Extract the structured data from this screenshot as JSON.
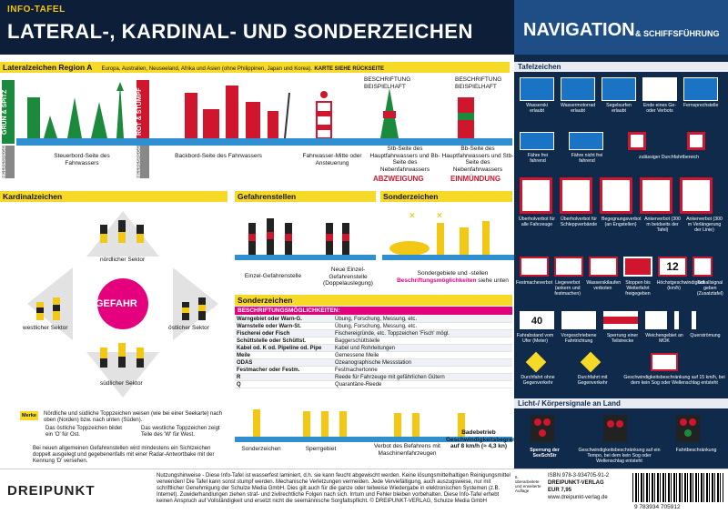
{
  "header": {
    "subtitle": "INFO-TAFEL",
    "title": "LATERAL-, KARDINAL- UND SONDERZEICHEN",
    "nav_title": "NAVIGATION",
    "nav_sub": "& SCHIFFSFÜHRUNG"
  },
  "lateral": {
    "heading": "Lateralzeichen Region A",
    "regions": "Europa, Australien, Neuseeland, Afrika und Asien (ohne Philippinen, Japan und Korea).",
    "see_back": "KARTE SIEHE RÜCKSEITE",
    "green_label": "GRÜN & SPITZ",
    "red_label": "ROT & STUMPF",
    "meeresregel": "MEERESREGEL",
    "captions": [
      "Steuerbord-Seite des Fahrwassers",
      "Backbord-Seite des Fahrwassers",
      "Fahrwasser-Mitte oder Ansteuerung",
      "Stb-Seite des Hauptfahrwassers und Bb-Seite des Nebenfahrwassers",
      "Bb-Seite des Hauptfahrwassers und Stb-Seite des Nebenfahrwassers"
    ],
    "abzweigung": "ABZWEIGUNG",
    "einmuendung": "EINMÜNDUNG",
    "beschriftung": "BESCHRIFTUNG BEISPIELHAFT"
  },
  "kardinal": {
    "heading": "Kardinalzeichen",
    "gefahr": "GEFAHR",
    "north": "nördlicher Sektor",
    "west": "westlicher Sektor",
    "east": "östlicher Sektor",
    "south": "südlicher Sektor",
    "merke": "Merke",
    "note1": "Nördliche und südliche Toppzeichen weisen (wie bei einer Seekarte) nach oben (Norden) bzw. nach unten (Süden).",
    "note2": "Das östliche Toppzeichen bildet ein 'O' für Ost.",
    "note3": "Das westliche Toppzeichen zeigt Teile des 'W' für West.",
    "note4": "Bei neuen allgemeinen Gefahrenstellen wird mindestens ein Sichtzeichen doppelt ausgelegt und gegebenenfalls mit einer Radar-Antwortbake mit der Kennung 'D' versehen."
  },
  "gefahren": {
    "heading": "Gefahrenstellen",
    "einzel": "Einzel-Gefahrenstelle",
    "neue": "Neue Einzel-Gefahrenstelle (Doppelauslegung)"
  },
  "sonder": {
    "heading": "Sonderzeichen",
    "caption1": "Sondergebiete und -stellen",
    "caption2": "Beschriftungsmöglichkeiten",
    "caption3": "siehe unten"
  },
  "sonder_table": {
    "heading": "Sonderzeichen",
    "subheading": "BESCHRIFTUNGSMÖGLICHKEITEN:",
    "rows": [
      {
        "k": "Warngebiet oder Warn-G.",
        "v": "Übung, Forschung, Messung, etc."
      },
      {
        "k": "Warnstelle oder Warn-St.",
        "v": "Übung, Forschung, Messung, etc."
      },
      {
        "k": "Fischerei oder Fisch",
        "v": "Fischereigründe, etc.      Toppzeichen 'Fisch' mögl."
      },
      {
        "k": "Schüttstelle oder Schüttst.",
        "v": "Baggerschüttstelle"
      },
      {
        "k": "Kabel od. K od. Pipeline od. Pipe",
        "v": "Kabel und Rohrleitungen"
      },
      {
        "k": "Meile",
        "v": "Gemessene Meile"
      },
      {
        "k": "ODAS",
        "v": "Ozeanographische Messstation"
      },
      {
        "k": "Festmacher oder Festm.",
        "v": "Festmachertonne"
      },
      {
        "k": "R",
        "v": "Reede für Fahrzeuge mit gefährlichen Gütern"
      },
      {
        "k": "Q",
        "v": "Quarantäne-Reede"
      }
    ]
  },
  "bottom_captions": {
    "a": "Sonderzeichen",
    "b": "Sperrgebiet",
    "c": "Verbot des Befahrens mit Maschinenfahrzeugen",
    "d": "Badebetrieb Geschwindigkeitsbegrenzung auf 8 km/h (≈ 4,3 kn)"
  },
  "right": {
    "tafel_heading": "Tafelzeichen",
    "signs_row1": [
      "Wasserski erlaubt",
      "Wassermotorrad erlaubt",
      "Segelsurfen erlaubt",
      "Ende eines Ge- oder Verbots",
      "Fernsprechstelle"
    ],
    "signs_row2": [
      "Fähre frei fahrend",
      "Fähre nicht frei fahrend",
      "zulässiger Durchfahrtbereich"
    ],
    "signs_row3": [
      "Überholverbot für alle Fahrzeuge",
      "Überholverbot für Schleppverbände",
      "Begegnungsverbot (an Engstellen)",
      "Ankerverbot (300 m beidseits der Tafel)",
      "Ankerverbot (300 m Verlängerung der Linie)"
    ],
    "signs_row4": [
      "Festmacheverbot",
      "Liegeverbot (ankern und festmachen)",
      "Wasserskilaufen verboten",
      "Stoppen bis Weiterfahrt freigegeben",
      "Höchstgeschwindigkeit (km/h)",
      "Schallsignal geben (Zusatztafel)"
    ],
    "speed_value": "12",
    "signs_row5": [
      "Fahrabstand vom Ufer (Meter)",
      "Vorgeschriebene Fahrtrichtung",
      "Sperrung einer Teilstrecke",
      "Weichengebiet an MOK",
      "Querströmung"
    ],
    "distance_value": "40",
    "signs_row6": [
      "Durchfahrt ohne Gegenverkehr",
      "Durchfahrt mit Gegenverkehr",
      "Geschwindigkeitsbeschränkung auf 15 km/h, bei dem kein Sog oder Wellenschlag entsteht"
    ],
    "licht_heading": "Licht-/ Körpersignale an Land",
    "licht": [
      "Sperrung der SeeSchStr",
      "Geschwindigkeitsbeschränkung auf ein Tempo, bei dem kein Sog oder Wellenschlag entsteht",
      "Fahrtbeschränkung"
    ]
  },
  "footer": {
    "logo": "DREIPUNKT",
    "notice": "Nutzungshinweise - Diese Info-Tafel ist wasserfest laminiert, d.h. sie kann feucht abgewischt werden. Keine lösungsmittelhaltigen Reinigungsmittel verwenden! Die Tafel kann sonst stumpf werden. Mechanische Verletzungen vermeiden. Jede Verviefältigung, auch auszugsweise, nur mit schriftlicher Genehmigung der Schulze Media GmbH. Dies gilt auch für die ganze oder teilweise Wiedergabe in elektronischen Systemen (z.B. Internet). Zuwiderhandlungen ziehen straf- und zivilrechtliche Folgen nach sich. Irrtum und Fehler bleiben vorbehalten. Diese Info-Tafel erhebt keinen Anspruch auf Vollständigkeit und ersetzt nicht die seemännische Sorgfaltspflicht. © DREIPUNKT-VERLAG, Schulze Media GmbH",
    "auflage": "6. überarbeitete und erweiterte Auflage",
    "isbn": "ISBN 978-3-934705-91-2",
    "verlag": "DREIPUNKT-VERLAG",
    "price": "EUR 7,95",
    "url": "www.dreipunkt-verlag.de",
    "barcode_digits": "9 783934 705912"
  },
  "colors": {
    "navy": "#0d1e38",
    "blue": "#1f4e86",
    "yellow": "#f7d928",
    "red": "#d0162c",
    "green": "#1c8a3c",
    "pink": "#e5007e"
  }
}
